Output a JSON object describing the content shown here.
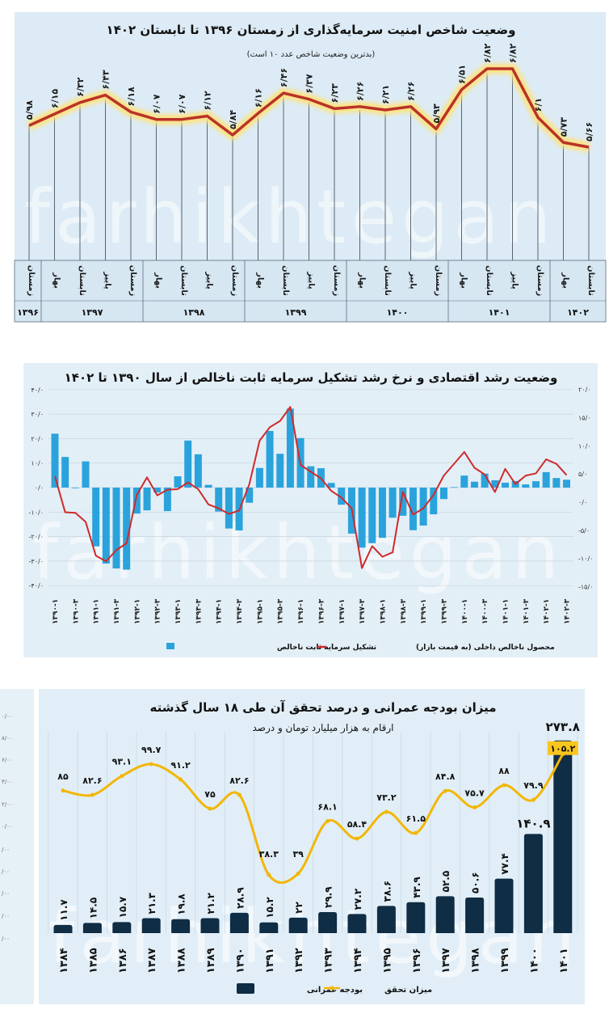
{
  "watermark": {
    "latin": "farhikhtegan",
    "persian": "فرهیختگان"
  },
  "colors": {
    "panel_bg": "#e1eef7",
    "chart1_line": "#b8322a",
    "chart1_glow": "#ffe27a",
    "chart2_bar": "#2aa3dc",
    "chart2_line": "#d02a2a",
    "chart3_bar": "#0f2d45",
    "chart3_line": "#f2b705"
  },
  "chart_data": [
    {
      "type": "line",
      "title": "وضعیت شاخص امنیت سرمایه‌گذاری از زمستان ۱۳۹۶ تا تابستان ۱۴۰۲",
      "subtitle": "(بدترین وضعیت شاخص عدد ۱۰ است)",
      "values": [
        5.98,
        6.15,
        6.32,
        6.43,
        6.18,
        6.07,
        6.07,
        6.12,
        5.84,
        6.16,
        6.46,
        6.37,
        6.23,
        6.26,
        6.21,
        6.26,
        5.93,
        6.51,
        6.82,
        6.82,
        6.1,
        5.73,
        5.66
      ],
      "value_labels": [
        "۵/۹۸",
        "۶/۱۵",
        "۶/۳۲",
        "۶/۴۳",
        "۶/۱۸",
        "۶/۰۷",
        "۶/۰۷",
        "۶/۱۲",
        "۵/۸۴",
        "۶/۱۶",
        "۶/۴۶",
        "۶/۳۷",
        "۶/۲۳",
        "۶/۲۶",
        "۶/۲۱",
        "۶/۲۶",
        "۵/۹۳",
        "۶/۵۱",
        "۶/۸۲",
        "۶/۸۲",
        "۶/۱",
        "۵/۷۳",
        "۵/۶۶"
      ],
      "seasons": [
        "زمستان",
        "بهار",
        "تابستان",
        "پاییز",
        "زمستان",
        "بهار",
        "تابستان",
        "پاییز",
        "زمستان",
        "بهار",
        "تابستان",
        "پاییز",
        "زمستان",
        "بهار",
        "تابستان",
        "پاییز",
        "زمستان",
        "بهار",
        "تابستان",
        "پاییز",
        "زمستان",
        "بهار",
        "تابستان"
      ],
      "years": [
        "۱۳۹۶",
        "۱۳۹۷",
        "۱۳۹۸",
        "۱۳۹۹",
        "۱۴۰۰",
        "۱۴۰۱",
        "۱۴۰۲"
      ]
    },
    {
      "type": "bar+line",
      "title": "وضعیت رشد اقتصادی و نرخ رشد تشکیل سرمایه ثابت ناخالص از سال ۱۳۹۰ تا ۱۴۰۲",
      "x_tick_labels": [
        "۱۳۹۰-۱",
        "۱۳۹۰-۳",
        "۱۳۹۱-۱",
        "۱۳۹۱-۳",
        "۱۳۹۲-۱",
        "۱۳۹۲-۳",
        "۱۳۹۳-۱",
        "۱۳۹۳-۳",
        "۱۳۹۴-۱",
        "۱۳۹۴-۳",
        "۱۳۹۵-۱",
        "۱۳۹۵-۳",
        "۱۳۹۶-۱",
        "۱۳۹۶-۳",
        "۱۳۹۷-۱",
        "۱۳۹۷-۳",
        "۱۳۹۸-۱",
        "۱۳۹۸-۳",
        "۱۳۹۹-۱",
        "۱۳۹۹-۳",
        "۱۴۰۰-۱",
        "۱۴۰۰-۳",
        "۱۴۰۱-۱",
        "۱۴۰۱-۳",
        "۱۴۰۲-۱",
        "۱۴۰۲-۳"
      ],
      "left_axis": {
        "ylim": [
          -40,
          40
        ],
        "tick_labels": [
          "۴۰/۰",
          "۳۰/۰",
          "۲۰/۰",
          "۱۰/۰",
          "۰/۰",
          "-۱۰/۰",
          "-۲۰/۰",
          "-۳۰/۰",
          "-۴۰/۰"
        ],
        "ticks": [
          40,
          30,
          20,
          10,
          0,
          -10,
          -20,
          -30,
          -40
        ]
      },
      "right_axis": {
        "ylim": [
          -15,
          20
        ],
        "tick_labels": [
          "۲۰/۰",
          "۱۵/۰",
          "۱۰/۰",
          "۵/۰",
          "۰/۰",
          "-۵/۰",
          "-۱۰/۰",
          "-۱۵/۰"
        ],
        "ticks": [
          20,
          15,
          10,
          5,
          0,
          -5,
          -10,
          -15
        ]
      },
      "grid": true,
      "legend_position": "bottom",
      "series": [
        {
          "name": "تشکیل سرمایه ثابت ناخالص",
          "kind": "bar",
          "axis": "left",
          "values": [
            22,
            12.5,
            0,
            10.7,
            -24,
            -31,
            -33,
            -33.5,
            -10.6,
            -9.3,
            -2,
            -9.6,
            4.6,
            19.2,
            13.6,
            1.1,
            -9.8,
            -16.7,
            -17.5,
            -6.2,
            8,
            23.1,
            13.8,
            32.2,
            20.2,
            8.7,
            7.9,
            1.9,
            -7,
            -18.8,
            -24.5,
            -22.7,
            -20.5,
            -12.3,
            -11.5,
            -17.4,
            -15.5,
            -10.9,
            -4.7,
            0.2,
            4.9,
            2.4,
            5.7,
            3,
            2,
            2.7,
            1.3,
            2.6,
            6.3,
            3.9,
            3.2
          ]
        },
        {
          "name": "محصول ناخالص داخلی (به قیمت بازار)",
          "kind": "line",
          "axis": "right",
          "values": [
            4.6,
            -1.8,
            -1.9,
            -3.5,
            -9.5,
            -10.5,
            -8.5,
            -7.3,
            1.3,
            4.4,
            1.2,
            2.2,
            2.3,
            3.5,
            2.3,
            -0.4,
            -1.1,
            -2.1,
            -1.5,
            3.2,
            10.9,
            13.3,
            14.4,
            16.9,
            6.6,
            5.4,
            4.2,
            2.0,
            0.8,
            -1.1,
            -11.7,
            -7.8,
            -9.7,
            -8.9,
            1.8,
            -2.2,
            -1.1,
            1.3,
            4.7,
            6.8,
            8.9,
            6.1,
            4.9,
            1.8,
            5.9,
            3.2,
            4.7,
            5.1,
            7.6,
            6.8,
            4.8
          ]
        }
      ]
    },
    {
      "type": "bar+line",
      "title": "میزان بودجه عمرانی و درصد تحقق آن طی ۱۸ سال گذشته",
      "subtitle": "ارقام به هزار میلیارد تومان و درصد",
      "categories": [
        "۱۳۸۴",
        "۱۳۸۵",
        "۱۳۸۶",
        "۱۳۸۷",
        "۱۳۸۸",
        "۱۳۸۹",
        "۱۳۹۰",
        "۱۳۹۱",
        "۱۳۹۲",
        "۱۳۹۳",
        "۱۳۹۴",
        "۱۳۹۵",
        "۱۳۹۶",
        "۱۳۹۷",
        "۱۳۹۸",
        "۱۳۹۹",
        "۱۴۰۰",
        "۱۴۰۱"
      ],
      "clipped_axis_labels": [
        "۰/۰۰",
        "۸/۰۰",
        "۶/۰۰",
        "۴/۰۰",
        "۲/۰۰",
        "۰/۰۰",
        "/۰۰",
        "/۰۰",
        "/۰۰",
        "/۰۰",
        "/۰۰"
      ],
      "legend_position": "bottom",
      "series": [
        {
          "name": "بودجه عمرانی",
          "kind": "bar",
          "values": [
            11.7,
            14.5,
            15.7,
            21.3,
            19.8,
            21.2,
            28.9,
            15.2,
            22,
            29.9,
            27.2,
            38.6,
            43.9,
            52.5,
            50.6,
            77.4,
            140.9,
            273.8
          ],
          "labels": [
            "۱۱.۷",
            "۱۴.۵",
            "۱۵.۷",
            "۲۱.۳",
            "۱۹.۸",
            "۲۱.۲",
            "۲۸.۹",
            "۱۵.۲",
            "۲۲",
            "۲۹.۹",
            "۲۷.۲",
            "۳۸.۶",
            "۴۳.۹",
            "۵۲.۵",
            "۵۰.۶",
            "۷۷.۴",
            "۱۴۰.۹",
            "۲۷۳.۸"
          ]
        },
        {
          "name": "میزان تحقق",
          "kind": "line",
          "values": [
            85,
            82.6,
            93.1,
            99.7,
            91.2,
            75,
            82.6,
            38.3,
            39,
            68.1,
            58.4,
            73.2,
            61.5,
            84.8,
            75.7,
            88,
            79.9,
            105.2
          ],
          "labels": [
            "۸۵",
            "۸۲.۶",
            "۹۳.۱",
            "۹۹.۷",
            "۹۱.۲",
            "۷۵",
            "۸۲.۶",
            "۳۸.۳",
            "۳۹",
            "۶۸.۱",
            "۵۸.۴",
            "۷۳.۲",
            "۶۱.۵",
            "۸۴.۸",
            "۷۵.۷",
            "۸۸",
            "۷۹.۹",
            "۱۰۵.۲"
          ]
        }
      ]
    }
  ]
}
